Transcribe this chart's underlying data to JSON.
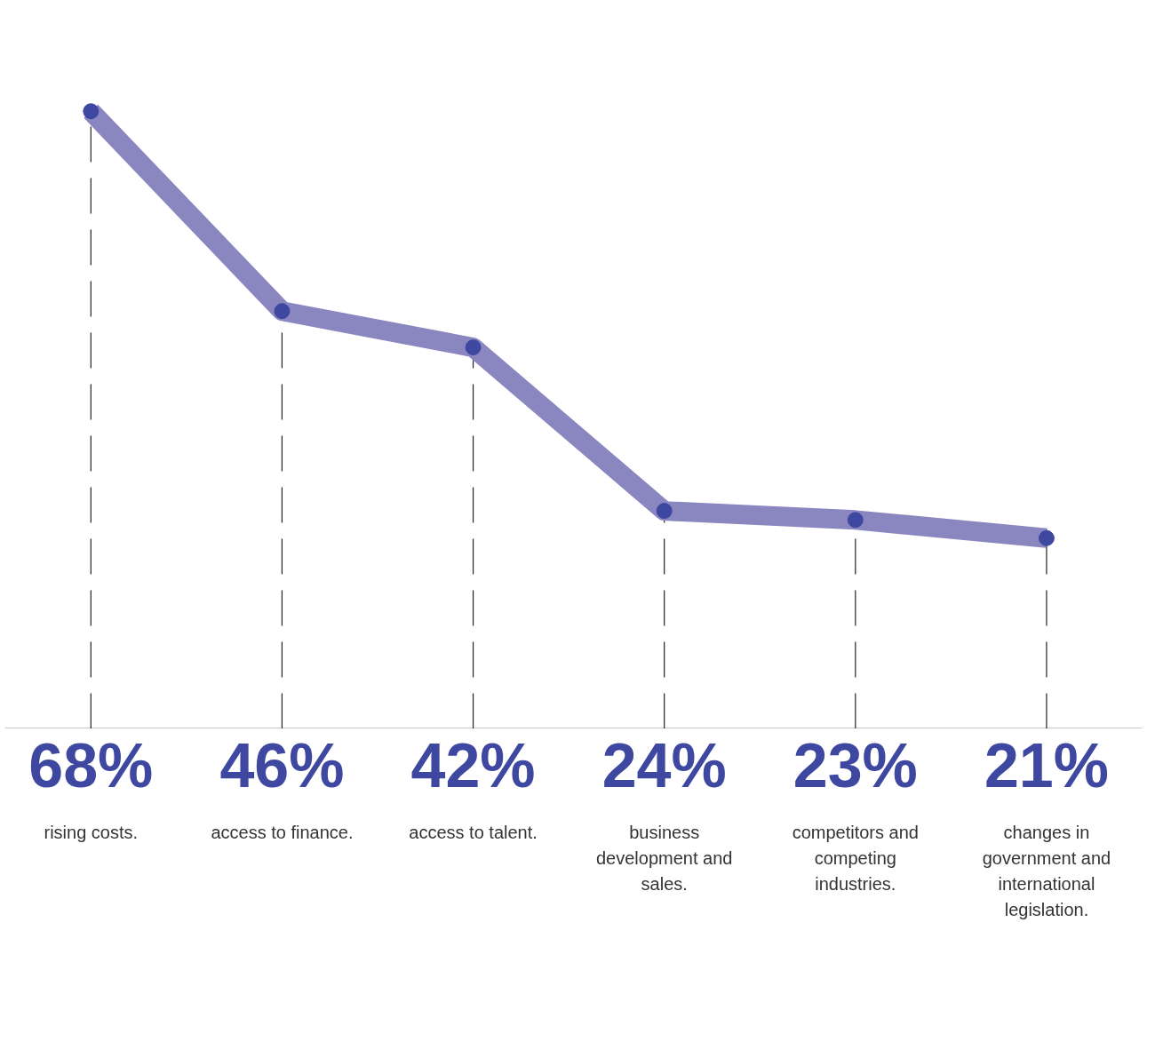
{
  "chart_data": {
    "type": "line",
    "categories": [
      "rising costs.",
      "access to finance.",
      "access to talent.",
      "business development and sales.",
      "competitors and competing industries.",
      "changes in government and international legislation."
    ],
    "series": [
      {
        "color": "#8a87c0",
        "values": [
          68,
          46,
          42,
          24,
          23,
          21
        ],
        "value_labels": [
          "68%",
          "46%",
          "42%",
          "24%",
          "23%",
          "21%"
        ]
      }
    ],
    "marker": "circle",
    "grid": "x"
  }
}
